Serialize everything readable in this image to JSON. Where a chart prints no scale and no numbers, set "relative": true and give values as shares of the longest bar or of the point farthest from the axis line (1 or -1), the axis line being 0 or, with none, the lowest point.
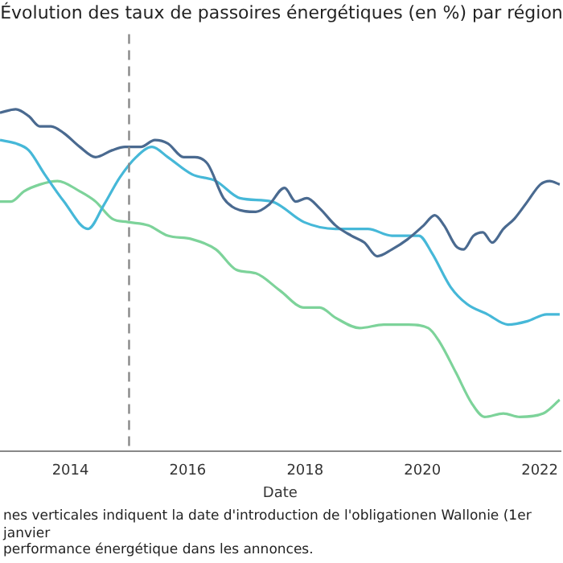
{
  "chart_data": {
    "type": "line",
    "relative": true,
    "title": "Évolution des taux de passoires énergétiques (en %) par région",
    "xlabel": "Date",
    "xlim": [
      2012.8,
      2022.35
    ],
    "xticks": [
      2014,
      2016,
      2018,
      2020,
      2022
    ],
    "grid": false,
    "legend": false,
    "marker": "none",
    "line_style": "solid",
    "series": [
      {
        "color": "#4a6a90",
        "x": [
          2012.8,
          2013.07,
          2013.29,
          2013.48,
          2013.67,
          2013.89,
          2014.16,
          2014.43,
          2014.71,
          2014.93,
          2015.2,
          2015.44,
          2015.66,
          2015.93,
          2016.12,
          2016.34,
          2016.61,
          2016.81,
          2017.16,
          2017.38,
          2017.65,
          2017.84,
          2018.03,
          2018.25,
          2018.52,
          2018.79,
          2019.01,
          2019.23,
          2019.48,
          2019.75,
          2020.02,
          2020.21,
          2020.37,
          2020.57,
          2020.7,
          2020.87,
          2021.03,
          2021.19,
          2021.38,
          2021.57,
          2021.79,
          2022.01,
          2022.17,
          2022.34
        ],
        "values": [
          0.99,
          1.0,
          0.98,
          0.95,
          0.95,
          0.93,
          0.89,
          0.86,
          0.88,
          0.89,
          0.89,
          0.91,
          0.9,
          0.86,
          0.86,
          0.84,
          0.74,
          0.71,
          0.7,
          0.72,
          0.77,
          0.73,
          0.74,
          0.71,
          0.66,
          0.63,
          0.61,
          0.57,
          0.59,
          0.62,
          0.66,
          0.69,
          0.66,
          0.6,
          0.59,
          0.63,
          0.64,
          0.61,
          0.65,
          0.68,
          0.73,
          0.78,
          0.79,
          0.78
        ]
      },
      {
        "color": "#46b8d8",
        "x": [
          2012.8,
          2013.07,
          2013.29,
          2013.56,
          2013.89,
          2014.3,
          2014.57,
          2014.84,
          2015.12,
          2015.39,
          2015.66,
          2016.07,
          2016.48,
          2016.89,
          2017.43,
          2017.98,
          2018.52,
          2019.07,
          2019.48,
          2019.94,
          2020.16,
          2020.48,
          2020.76,
          2021.11,
          2021.46,
          2021.79,
          2022.12,
          2022.34
        ],
        "values": [
          0.91,
          0.9,
          0.88,
          0.81,
          0.73,
          0.65,
          0.72,
          0.8,
          0.86,
          0.89,
          0.86,
          0.81,
          0.79,
          0.74,
          0.73,
          0.67,
          0.65,
          0.65,
          0.63,
          0.63,
          0.58,
          0.48,
          0.43,
          0.4,
          0.37,
          0.38,
          0.4,
          0.4
        ]
      },
      {
        "color": "#7dd39a",
        "x": [
          2012.8,
          2012.99,
          2013.21,
          2013.48,
          2013.78,
          2014.16,
          2014.43,
          2014.71,
          2014.98,
          2015.33,
          2015.66,
          2016.07,
          2016.48,
          2016.83,
          2017.16,
          2017.57,
          2017.98,
          2018.25,
          2018.52,
          2018.93,
          2019.34,
          2019.75,
          2020.1,
          2020.29,
          2020.57,
          2020.84,
          2021.06,
          2021.38,
          2021.66,
          2022.06,
          2022.34
        ],
        "values": [
          0.73,
          0.73,
          0.76,
          0.78,
          0.79,
          0.76,
          0.73,
          0.68,
          0.67,
          0.66,
          0.63,
          0.62,
          0.59,
          0.53,
          0.52,
          0.47,
          0.42,
          0.42,
          0.39,
          0.36,
          0.37,
          0.37,
          0.36,
          0.32,
          0.23,
          0.14,
          0.1,
          0.11,
          0.1,
          0.11,
          0.15
        ]
      }
    ],
    "ref_lines": [
      {
        "axis": "x",
        "value": 2015,
        "color": "#888888",
        "line_style": "dashed"
      }
    ],
    "annotations": [
      "nes verticales indiquent la date d'introduction de l'obligationen Wallonie (1er janvier",
      "performance énergétique dans les annonces."
    ]
  }
}
